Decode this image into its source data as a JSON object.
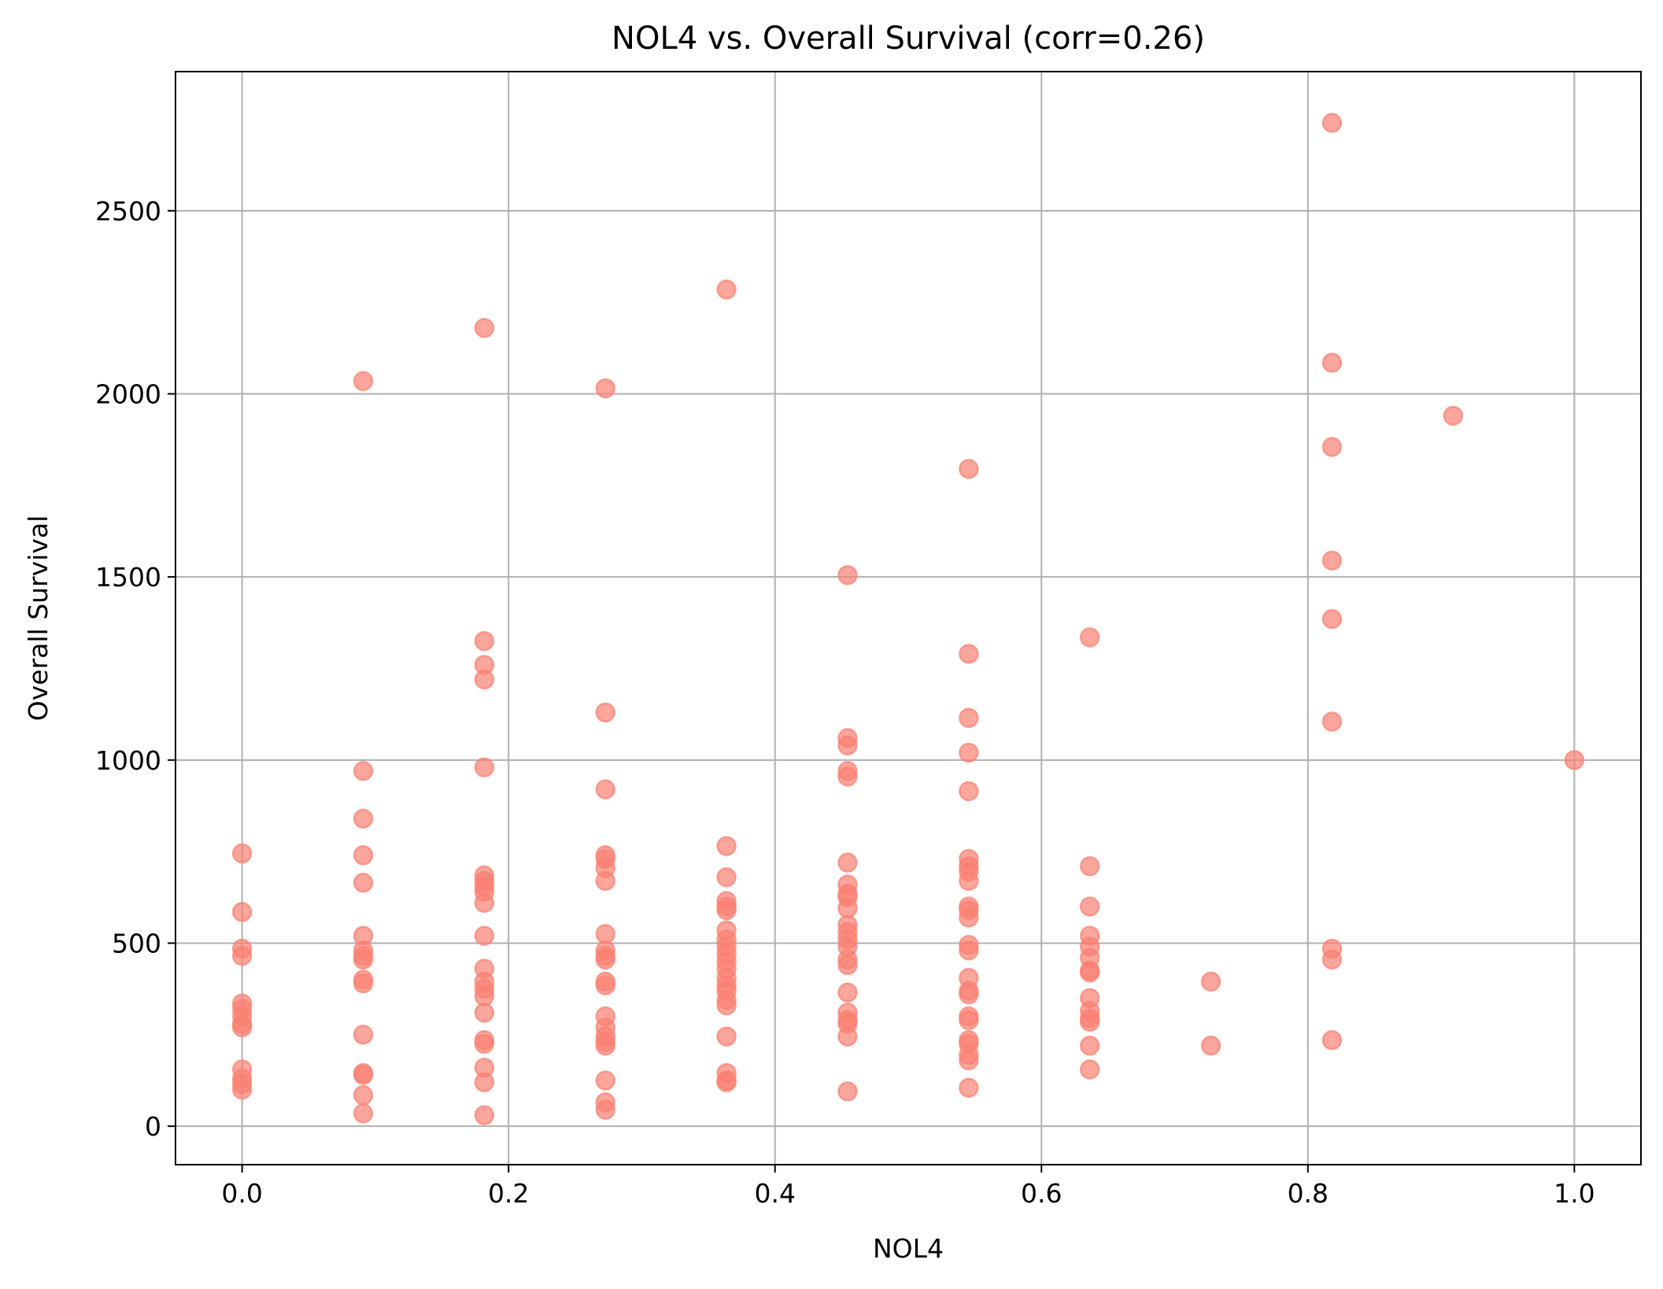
{
  "chart_data": {
    "type": "scatter",
    "title": "NOL4 vs. Overall Survival (corr=0.26)",
    "xlabel": "NOL4",
    "ylabel": "Overall Survival",
    "xlim": [
      -0.05,
      1.05
    ],
    "ylim": [
      -105,
      2880
    ],
    "xticks": [
      0.0,
      0.2,
      0.4,
      0.6,
      0.8,
      1.0
    ],
    "xtick_labels": [
      "0.0",
      "0.2",
      "0.4",
      "0.6",
      "0.8",
      "1.0"
    ],
    "yticks": [
      0,
      500,
      1000,
      1500,
      2000,
      2500
    ],
    "ytick_labels": [
      "0",
      "500",
      "1000",
      "1500",
      "2000",
      "2500"
    ],
    "grid": true,
    "legend": "none",
    "point_color": "#fa8072",
    "point_alpha": 0.7,
    "points": [
      [
        0.0,
        745
      ],
      [
        0.0,
        585
      ],
      [
        0.0,
        485
      ],
      [
        0.0,
        465
      ],
      [
        0.0,
        335
      ],
      [
        0.0,
        320
      ],
      [
        0.0,
        300
      ],
      [
        0.0,
        280
      ],
      [
        0.0,
        270
      ],
      [
        0.0,
        155
      ],
      [
        0.0,
        130
      ],
      [
        0.0,
        115
      ],
      [
        0.0,
        100
      ],
      [
        0.0909,
        2035
      ],
      [
        0.0909,
        970
      ],
      [
        0.0909,
        840
      ],
      [
        0.0909,
        740
      ],
      [
        0.0909,
        665
      ],
      [
        0.0909,
        520
      ],
      [
        0.0909,
        480
      ],
      [
        0.0909,
        465
      ],
      [
        0.0909,
        455
      ],
      [
        0.0909,
        400
      ],
      [
        0.0909,
        390
      ],
      [
        0.0909,
        250
      ],
      [
        0.0909,
        145
      ],
      [
        0.0909,
        140
      ],
      [
        0.0909,
        85
      ],
      [
        0.0909,
        35
      ],
      [
        0.1818,
        2180
      ],
      [
        0.1818,
        1325
      ],
      [
        0.1818,
        1260
      ],
      [
        0.1818,
        1220
      ],
      [
        0.1818,
        980
      ],
      [
        0.1818,
        685
      ],
      [
        0.1818,
        670
      ],
      [
        0.1818,
        655
      ],
      [
        0.1818,
        640
      ],
      [
        0.1818,
        610
      ],
      [
        0.1818,
        520
      ],
      [
        0.1818,
        430
      ],
      [
        0.1818,
        395
      ],
      [
        0.1818,
        375
      ],
      [
        0.1818,
        355
      ],
      [
        0.1818,
        310
      ],
      [
        0.1818,
        235
      ],
      [
        0.1818,
        225
      ],
      [
        0.1818,
        160
      ],
      [
        0.1818,
        120
      ],
      [
        0.1818,
        30
      ],
      [
        0.2727,
        2015
      ],
      [
        0.2727,
        1130
      ],
      [
        0.2727,
        920
      ],
      [
        0.2727,
        740
      ],
      [
        0.2727,
        730
      ],
      [
        0.2727,
        705
      ],
      [
        0.2727,
        670
      ],
      [
        0.2727,
        525
      ],
      [
        0.2727,
        480
      ],
      [
        0.2727,
        465
      ],
      [
        0.2727,
        455
      ],
      [
        0.2727,
        395
      ],
      [
        0.2727,
        385
      ],
      [
        0.2727,
        300
      ],
      [
        0.2727,
        270
      ],
      [
        0.2727,
        245
      ],
      [
        0.2727,
        230
      ],
      [
        0.2727,
        220
      ],
      [
        0.2727,
        125
      ],
      [
        0.2727,
        65
      ],
      [
        0.2727,
        45
      ],
      [
        0.3636,
        2285
      ],
      [
        0.3636,
        765
      ],
      [
        0.3636,
        680
      ],
      [
        0.3636,
        615
      ],
      [
        0.3636,
        600
      ],
      [
        0.3636,
        590
      ],
      [
        0.3636,
        535
      ],
      [
        0.3636,
        510
      ],
      [
        0.3636,
        490
      ],
      [
        0.3636,
        470
      ],
      [
        0.3636,
        450
      ],
      [
        0.3636,
        430
      ],
      [
        0.3636,
        405
      ],
      [
        0.3636,
        385
      ],
      [
        0.3636,
        370
      ],
      [
        0.3636,
        345
      ],
      [
        0.3636,
        330
      ],
      [
        0.3636,
        245
      ],
      [
        0.3636,
        145
      ],
      [
        0.3636,
        125
      ],
      [
        0.3636,
        120
      ],
      [
        0.4545,
        1505
      ],
      [
        0.4545,
        1060
      ],
      [
        0.4545,
        1040
      ],
      [
        0.4545,
        970
      ],
      [
        0.4545,
        955
      ],
      [
        0.4545,
        720
      ],
      [
        0.4545,
        660
      ],
      [
        0.4545,
        635
      ],
      [
        0.4545,
        625
      ],
      [
        0.4545,
        595
      ],
      [
        0.4545,
        550
      ],
      [
        0.4545,
        530
      ],
      [
        0.4545,
        510
      ],
      [
        0.4545,
        490
      ],
      [
        0.4545,
        455
      ],
      [
        0.4545,
        440
      ],
      [
        0.4545,
        365
      ],
      [
        0.4545,
        310
      ],
      [
        0.4545,
        290
      ],
      [
        0.4545,
        280
      ],
      [
        0.4545,
        245
      ],
      [
        0.4545,
        95
      ],
      [
        0.5454,
        1795
      ],
      [
        0.5454,
        1290
      ],
      [
        0.5454,
        1115
      ],
      [
        0.5454,
        1020
      ],
      [
        0.5454,
        915
      ],
      [
        0.5454,
        730
      ],
      [
        0.5454,
        710
      ],
      [
        0.5454,
        695
      ],
      [
        0.5454,
        670
      ],
      [
        0.5454,
        600
      ],
      [
        0.5454,
        590
      ],
      [
        0.5454,
        570
      ],
      [
        0.5454,
        495
      ],
      [
        0.5454,
        480
      ],
      [
        0.5454,
        405
      ],
      [
        0.5454,
        370
      ],
      [
        0.5454,
        360
      ],
      [
        0.5454,
        300
      ],
      [
        0.5454,
        290
      ],
      [
        0.5454,
        235
      ],
      [
        0.5454,
        225
      ],
      [
        0.5454,
        195
      ],
      [
        0.5454,
        180
      ],
      [
        0.5454,
        105
      ],
      [
        0.6363,
        1335
      ],
      [
        0.6363,
        710
      ],
      [
        0.6363,
        600
      ],
      [
        0.6363,
        520
      ],
      [
        0.6363,
        490
      ],
      [
        0.6363,
        460
      ],
      [
        0.6363,
        425
      ],
      [
        0.6363,
        420
      ],
      [
        0.6363,
        350
      ],
      [
        0.6363,
        315
      ],
      [
        0.6363,
        295
      ],
      [
        0.6363,
        285
      ],
      [
        0.6363,
        220
      ],
      [
        0.6363,
        155
      ],
      [
        0.7272,
        395
      ],
      [
        0.7272,
        220
      ],
      [
        0.8181,
        2740
      ],
      [
        0.8181,
        2085
      ],
      [
        0.8181,
        1855
      ],
      [
        0.8181,
        1545
      ],
      [
        0.8181,
        1385
      ],
      [
        0.8181,
        1105
      ],
      [
        0.8181,
        485
      ],
      [
        0.8181,
        455
      ],
      [
        0.8181,
        235
      ],
      [
        0.909,
        1940
      ],
      [
        1.0,
        1000
      ]
    ]
  }
}
